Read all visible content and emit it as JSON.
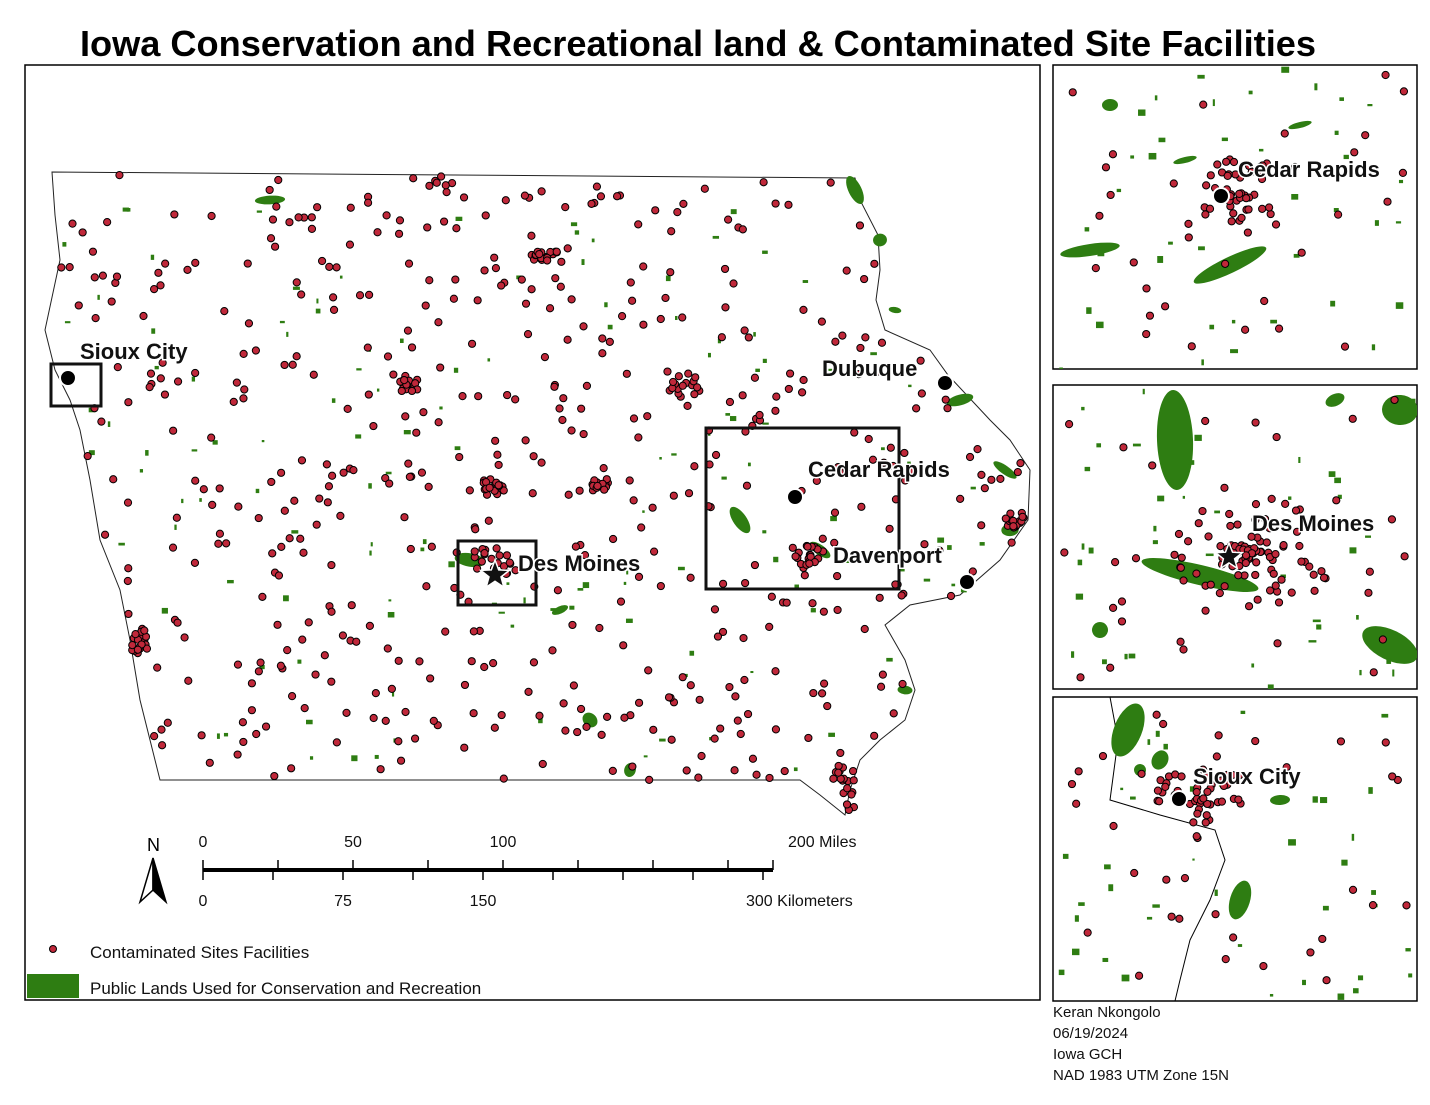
{
  "title": "Iowa Conservation and Recreational land & Contaminated Site Facilities",
  "main_map": {
    "cities": [
      "Sioux City",
      "Dubuque",
      "Cedar Rapids",
      "Des Moines",
      "Davenport"
    ]
  },
  "north_arrow": "N",
  "scale_bar": {
    "miles": [
      "0",
      "50",
      "100",
      "200 Miles"
    ],
    "kilometers": [
      "0",
      "75",
      "150",
      "300 Kilometers"
    ]
  },
  "legend": [
    "Contaminated Sites Facilities",
    "Public Lands Used for Conservation and Recreation"
  ],
  "insets": [
    {
      "label": "Cedar Rapids"
    },
    {
      "label": "Des Moines"
    },
    {
      "label": "Sioux City"
    }
  ],
  "credits": [
    "Keran Nkongolo",
    "06/19/2024",
    "Iowa GCH",
    "NAD 1983 UTM Zone 15N"
  ]
}
